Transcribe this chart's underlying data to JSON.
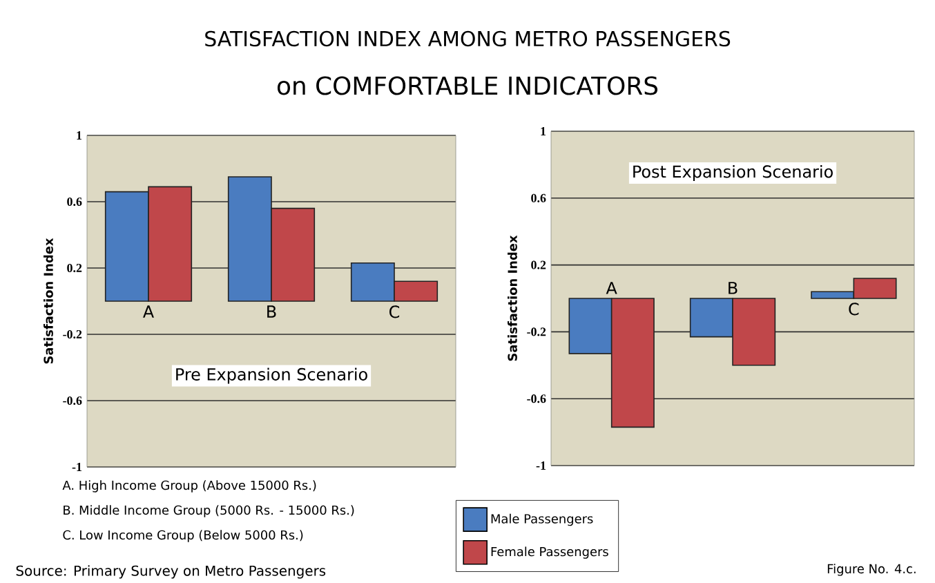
{
  "chart_data": [
    {
      "type": "bar",
      "title": "SATISFACTION INDEX AMONG METRO PASSENGERS",
      "subtitle": "on COMFORTABLE INDICATORS",
      "ylabel": "Satisfaction Index",
      "categories": [
        "A",
        "B",
        "C"
      ],
      "series": [
        {
          "color": "#4a7cc0",
          "values": [
            0.66,
            0.75,
            0.23
          ]
        },
        {
          "color": "#c0474a",
          "values": [
            0.69,
            0.56,
            0.12
          ]
        }
      ],
      "ylim": [
        -1,
        1
      ],
      "yticks": [
        -1,
        -0.6,
        -0.2,
        0.2,
        0.6,
        1
      ],
      "grid": "y",
      "annotations": [
        "Pre Expansion Scenario",
        "A.  High Income Group (Above 15000 Rs.)",
        "B.  Middle Income Group (5000 Rs. - 15000 Rs.)",
        "C.  Low Income Group (Below 5000 Rs.)",
        "Source: Primary Survey on Metro Passengers"
      ]
    },
    {
      "type": "bar",
      "ylabel": "Satisfaction Index",
      "categories": [
        "A",
        "B",
        "C"
      ],
      "series": [
        {
          "name": "Male Passengers",
          "color": "#4a7cc0",
          "values": [
            -0.33,
            -0.23,
            0.04
          ]
        },
        {
          "name": "Female Passengers",
          "color": "#c0474a",
          "values": [
            -0.77,
            -0.4,
            0.12
          ]
        }
      ],
      "ylim": [
        -1,
        1
      ],
      "yticks": [
        -1,
        -0.6,
        -0.2,
        0.2,
        0.6,
        1
      ],
      "grid": "y",
      "legend": "bottom",
      "annotations": [
        "Post Expansion Scenario",
        "Figure No. 4.c."
      ]
    }
  ]
}
